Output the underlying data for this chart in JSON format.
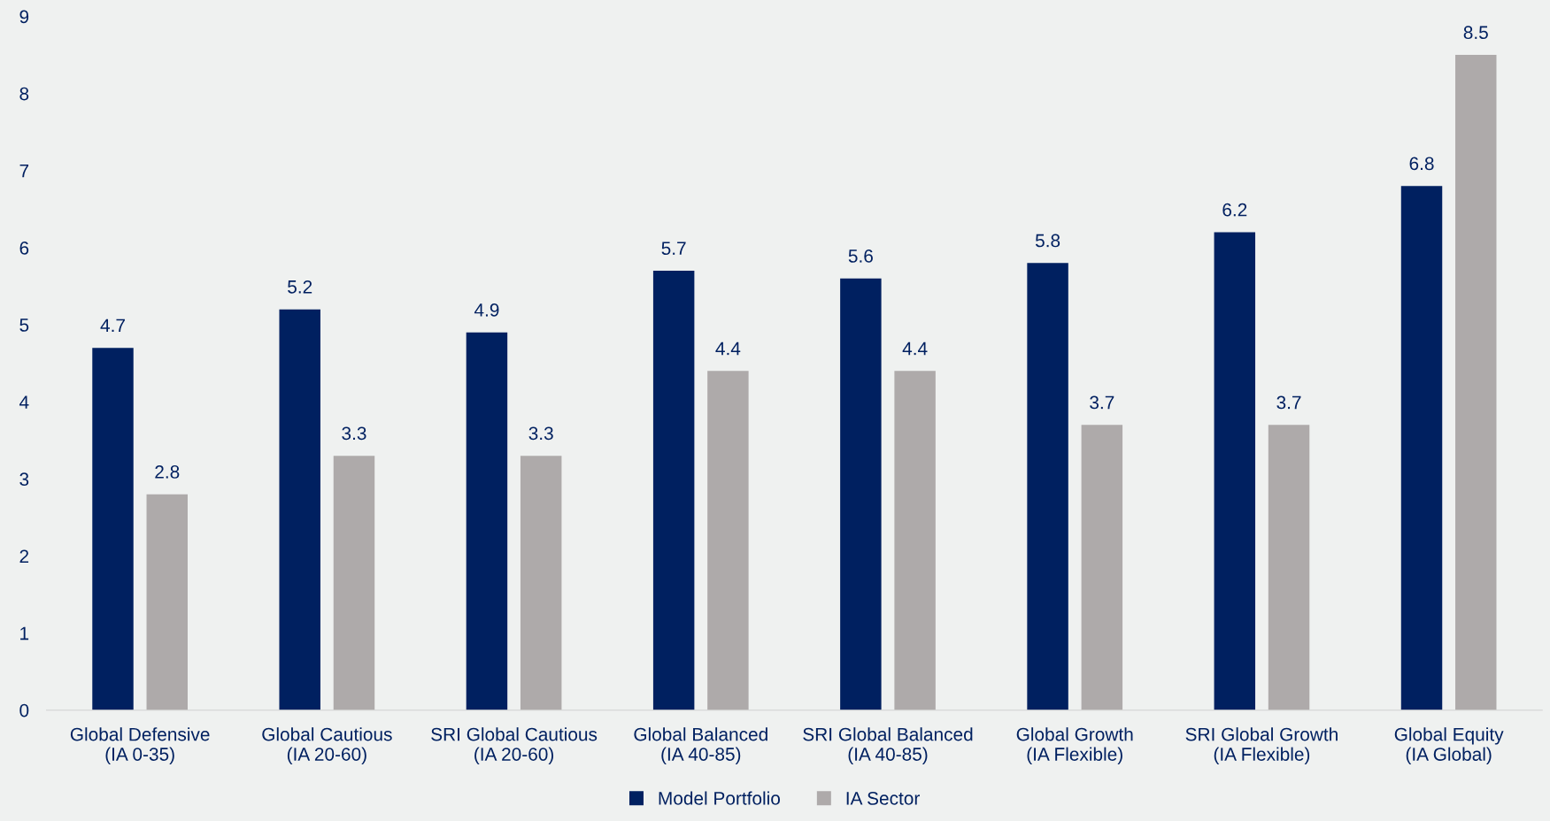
{
  "chart_data": {
    "type": "bar",
    "categories": [
      "Global Defensive\n(IA 0-35)",
      "Global Cautious\n(IA 20-60)",
      "SRI Global Cautious\n(IA 20-60)",
      "Global Balanced\n(IA 40-85)",
      "SRI Global Balanced\n(IA 40-85)",
      "Global Growth\n(IA Flexible)",
      "SRI Global Growth\n(IA Flexible)",
      "Global Equity\n(IA Global)"
    ],
    "series": [
      {
        "name": "Model Portfolio",
        "color": "#002060",
        "values": [
          4.7,
          5.2,
          4.9,
          5.7,
          5.6,
          5.8,
          6.2,
          6.8
        ]
      },
      {
        "name": "IA Sector",
        "color": "#aeaaaa",
        "values": [
          2.8,
          3.3,
          3.3,
          4.4,
          4.4,
          3.7,
          3.7,
          8.5
        ]
      }
    ],
    "ylim": [
      0,
      9
    ],
    "yticks": [
      0,
      1,
      2,
      3,
      4,
      5,
      6,
      7,
      8,
      9
    ],
    "data_labels": true,
    "grid": false,
    "legend": "bottom"
  }
}
